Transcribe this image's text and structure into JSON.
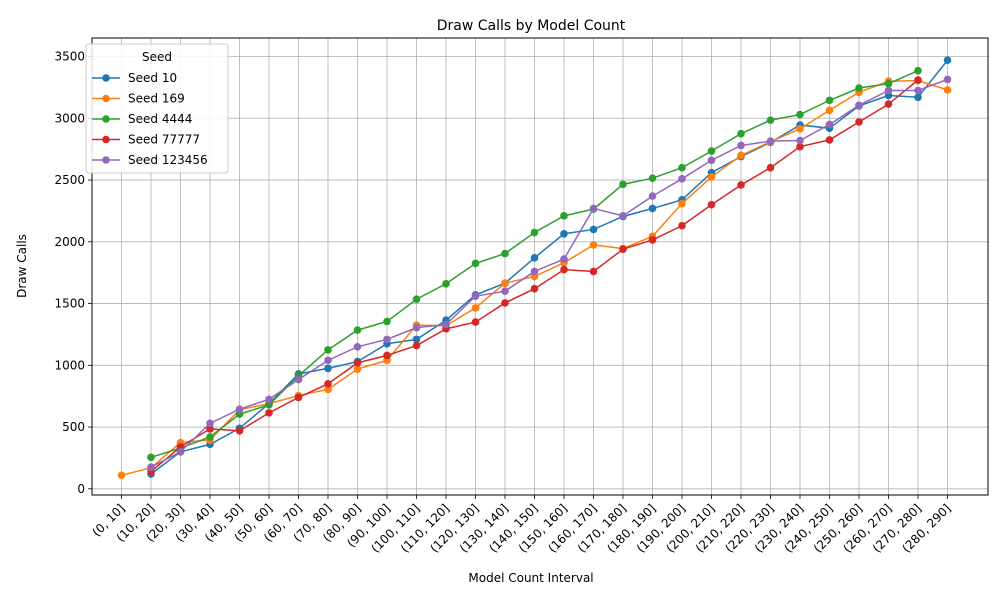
{
  "chart_data": {
    "type": "line",
    "title": "Draw Calls by Model Count",
    "xlabel": "Model Count Interval",
    "ylabel": "Draw Calls",
    "ylim": [
      -50,
      3650
    ],
    "yticks": [
      0,
      500,
      1000,
      1500,
      2000,
      2500,
      3000,
      3500
    ],
    "grid": true,
    "legend": {
      "title": "Seed",
      "placement": "top-left"
    },
    "categories": [
      "(0, 10]",
      "(10, 20]",
      "(20, 30]",
      "(30, 40]",
      "(40, 50]",
      "(50, 60]",
      "(60, 70]",
      "(70, 80]",
      "(80, 90]",
      "(90, 100]",
      "(100, 110]",
      "(110, 120]",
      "(120, 130]",
      "(130, 140]",
      "(140, 150]",
      "(150, 160]",
      "(160, 170]",
      "(170, 180]",
      "(180, 190]",
      "(190, 200]",
      "(200, 210]",
      "(210, 220]",
      "(220, 230]",
      "(230, 240]",
      "(240, 250]",
      "(250, 260]",
      "(260, 270]",
      "(270, 280]",
      "(280, 290]"
    ],
    "series": [
      {
        "name": "Seed 10",
        "color": "#1f77b4",
        "values": [
          null,
          120,
          300,
          360,
          490,
          690,
          930,
          975,
          1030,
          1175,
          1210,
          1365,
          1570,
          1665,
          1870,
          2065,
          2100,
          2205,
          2270,
          2340,
          2560,
          2690,
          2805,
          2945,
          2920,
          3100,
          3185,
          3170,
          3470
        ]
      },
      {
        "name": "Seed 169",
        "color": "#ff7f0e",
        "values": [
          110,
          170,
          375,
          395,
          640,
          690,
          755,
          805,
          970,
          1040,
          1325,
          1320,
          1465,
          1665,
          1720,
          1830,
          1975,
          1945,
          2045,
          2310,
          2525,
          2700,
          2810,
          2915,
          3065,
          3210,
          3300,
          3305,
          3230
        ]
      },
      {
        "name": "Seed 4444",
        "color": "#2ca02c",
        "values": [
          null,
          255,
          330,
          420,
          605,
          680,
          915,
          1125,
          1285,
          1355,
          1535,
          1660,
          1825,
          1905,
          2075,
          2210,
          2265,
          2465,
          2515,
          2600,
          2735,
          2875,
          2985,
          3030,
          3145,
          3245,
          3280,
          3385,
          null
        ]
      },
      {
        "name": "Seed 77777",
        "color": "#d62728",
        "values": [
          null,
          140,
          340,
          485,
          470,
          615,
          740,
          850,
          1020,
          1080,
          1160,
          1295,
          1350,
          1505,
          1620,
          1775,
          1760,
          1940,
          2015,
          2130,
          2300,
          2460,
          2600,
          2770,
          2825,
          2970,
          3115,
          3310,
          null
        ]
      },
      {
        "name": "Seed 123456",
        "color": "#9467bd",
        "values": [
          null,
          175,
          300,
          530,
          645,
          725,
          885,
          1040,
          1150,
          1210,
          1305,
          1330,
          1560,
          1600,
          1760,
          1860,
          2270,
          2210,
          2370,
          2510,
          2660,
          2780,
          2815,
          2820,
          2950,
          3105,
          3225,
          3225,
          3315
        ]
      }
    ]
  }
}
